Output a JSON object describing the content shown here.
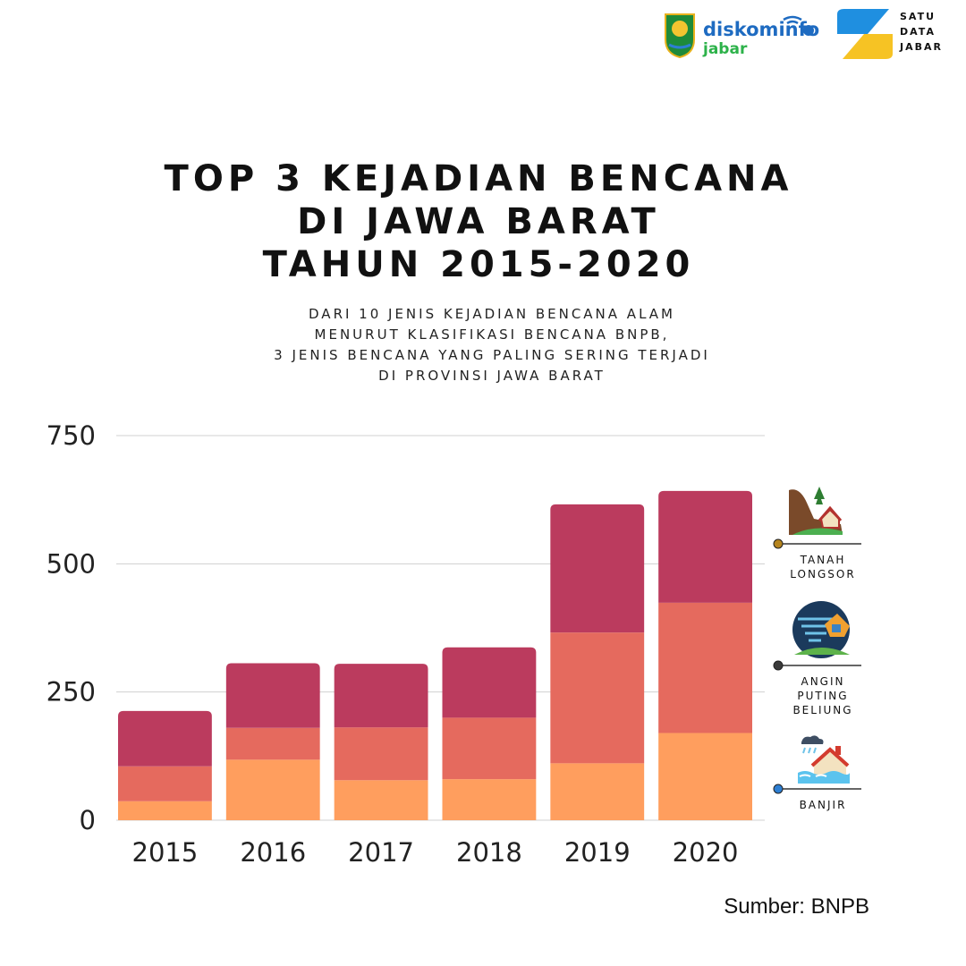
{
  "title_lines": [
    "TOP 3 KEJADIAN BENCANA",
    "DI JAWA BARAT",
    "TAHUN 2015-2020"
  ],
  "subtitle_lines": [
    "DARI 10 JENIS KEJADIAN BENCANA ALAM",
    "MENURUT KLASIFIKASI BENCANA BNPB,",
    "3 JENIS BENCANA YANG PALING SERING TERJADI",
    "DI PROVINSI JAWA BARAT"
  ],
  "logos": {
    "diskominfo": {
      "line1": "diskominfo",
      "line2": "jabar"
    },
    "satudata": [
      "SATU",
      "DATA",
      "JABAR"
    ]
  },
  "source": "Sumber: BNPB",
  "chart_data": {
    "type": "bar",
    "stacked": true,
    "categories": [
      "2015",
      "2016",
      "2017",
      "2018",
      "2019",
      "2020"
    ],
    "ylim": [
      0,
      750
    ],
    "yticks": [
      0,
      250,
      500,
      750
    ],
    "grid": true,
    "legend_position": "right",
    "series": [
      {
        "name": "BANJIR",
        "color": "#FF9E5E",
        "values": [
          37,
          118,
          78,
          80,
          111,
          170
        ]
      },
      {
        "name": "ANGIN PUTING BELIUNG",
        "color": "#E56A5E",
        "values": [
          68,
          62,
          103,
          120,
          255,
          254
        ]
      },
      {
        "name": "TANAH LONGSOR",
        "color": "#BB3B5E",
        "values": [
          108,
          126,
          124,
          137,
          250,
          218
        ]
      }
    ],
    "legend": [
      {
        "label_lines": [
          "TANAH",
          "LONGSOR"
        ],
        "icon": "landslide-icon",
        "dot_color": "#B5841E"
      },
      {
        "label_lines": [
          "ANGIN",
          "PUTING",
          "BELIUNG"
        ],
        "icon": "tornado-icon",
        "dot_color": "#3A3A3A"
      },
      {
        "label_lines": [
          "BANJIR"
        ],
        "icon": "flood-icon",
        "dot_color": "#2D7FD3"
      }
    ]
  }
}
